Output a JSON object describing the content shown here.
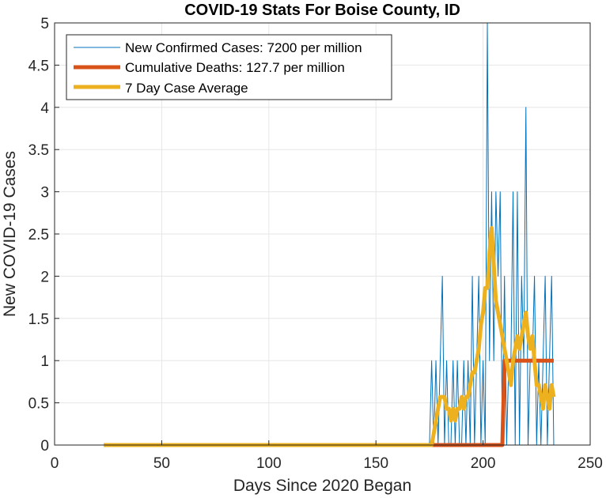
{
  "chart_data": {
    "type": "line",
    "title": "COVID-19 Stats For Boise County, ID",
    "xlabel": "Days Since 2020 Began",
    "ylabel": "New COVID-19 Cases",
    "xlim": [
      0,
      250
    ],
    "ylim": [
      0,
      5
    ],
    "xticks": [
      0,
      50,
      100,
      150,
      200,
      250
    ],
    "yticks": [
      0,
      0.5,
      1,
      1.5,
      2,
      2.5,
      3,
      3.5,
      4,
      4.5,
      5
    ],
    "xtick_labels": [
      "0",
      "50",
      "100",
      "150",
      "200",
      "250"
    ],
    "ytick_labels": [
      "0",
      "0.5",
      "1",
      "1.5",
      "2",
      "2.5",
      "3",
      "3.5",
      "4",
      "4.5",
      "5"
    ],
    "grid": true,
    "legend_position": "top-left",
    "series": [
      {
        "name": "New Confirmed Cases: 7200 per million",
        "color": "#0072BD",
        "x": [
          23,
          175,
          176,
          177,
          178,
          179,
          180,
          181,
          182,
          183,
          184,
          185,
          186,
          187,
          188,
          189,
          190,
          191,
          192,
          193,
          194,
          195,
          196,
          197,
          198,
          199,
          200,
          201,
          202,
          203,
          204,
          205,
          206,
          207,
          208,
          209,
          210,
          211,
          212,
          213,
          214,
          215,
          216,
          217,
          218,
          219,
          220,
          221,
          222,
          223,
          224,
          225,
          226,
          227,
          228,
          229,
          230,
          231,
          232,
          233
        ],
        "y": [
          0,
          0,
          1,
          0,
          1,
          0,
          1,
          2,
          0,
          1,
          0,
          0,
          1,
          0,
          1,
          0,
          0,
          1,
          0,
          1,
          0,
          2,
          0,
          1,
          2,
          0,
          1,
          0,
          5,
          1,
          3,
          1,
          3,
          2,
          3,
          0,
          2,
          0,
          1,
          1,
          3,
          0,
          3,
          0,
          2,
          1,
          4,
          0,
          1,
          1,
          2,
          0,
          1,
          0,
          1,
          2,
          0,
          1,
          2,
          0
        ]
      },
      {
        "name": "Cumulative Deaths: 127.7 per million",
        "color": "#D95319",
        "x": [
          23,
          209,
          210,
          233
        ],
        "y": [
          0,
          0,
          1,
          1
        ]
      },
      {
        "name": "7 Day Case Average",
        "color": "#EDB120",
        "x": [
          23,
          176,
          177,
          178,
          179,
          180,
          181,
          182,
          183,
          184,
          185,
          186,
          187,
          188,
          189,
          190,
          191,
          192,
          193,
          194,
          195,
          196,
          197,
          198,
          199,
          200,
          201,
          202,
          203,
          204,
          205,
          206,
          207,
          208,
          209,
          210,
          211,
          212,
          213,
          214,
          215,
          216,
          217,
          218,
          219,
          220,
          221,
          222,
          223,
          224,
          225,
          226,
          227,
          228,
          229,
          230,
          231,
          232,
          233
        ],
        "y": [
          0,
          0,
          0.14,
          0.29,
          0.43,
          0.57,
          0.57,
          0.57,
          0.43,
          0.43,
          0.29,
          0.43,
          0.29,
          0.43,
          0.43,
          0.57,
          0.43,
          0.57,
          0.57,
          0.71,
          0.86,
          0.86,
          1.0,
          1.14,
          1.43,
          1.57,
          1.86,
          1.86,
          2.29,
          2.57,
          2.14,
          1.71,
          1.57,
          1.43,
          1.29,
          1.14,
          1.0,
          0.86,
          0.71,
          1.0,
          1.14,
          1.29,
          1.14,
          1.29,
          1.43,
          1.57,
          1.29,
          1.14,
          1.29,
          1.0,
          0.71,
          0.71,
          0.57,
          0.43,
          0.71,
          0.57,
          0.43,
          0.71,
          0.57
        ]
      }
    ]
  }
}
